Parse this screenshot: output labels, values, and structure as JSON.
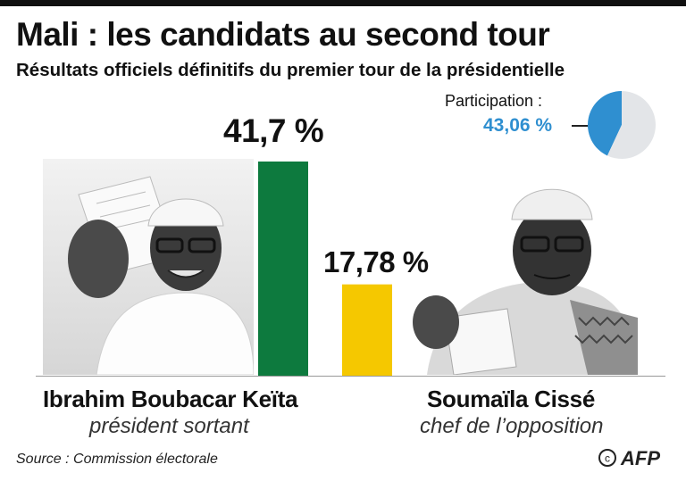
{
  "header": {
    "title": "Mali : les candidats au second tour",
    "subtitle": "Résultats officiels définitifs du premier tour de la présidentielle"
  },
  "participation": {
    "label": "Participation :",
    "value_text": "43,06 %",
    "value": 43.06,
    "accent_color": "#2f8fd0",
    "rest_color": "#e3e5e8"
  },
  "chart_data": {
    "type": "bar",
    "title": "Mali : les candidats au second tour",
    "subtitle": "Résultats officiels définitifs du premier tour de la présidentielle",
    "categories": [
      "Ibrahim Boubacar Keïta",
      "Soumaïla Cissé"
    ],
    "values": [
      41.7,
      17.78
    ],
    "value_labels": [
      "41,7 %",
      "17,78 %"
    ],
    "colors": [
      "#0d7a3e",
      "#f5c800"
    ],
    "ylim": [
      0,
      45
    ],
    "grid": false,
    "inset_pie": {
      "label": "Participation :",
      "slices": [
        {
          "value": 43.06,
          "color": "#2f8fd0"
        },
        {
          "value": 56.94,
          "color": "#e3e5e8"
        }
      ]
    }
  },
  "candidates": [
    {
      "name": "Ibrahim Boubacar Keïta",
      "role": "président sortant",
      "value_label": "41,7 %",
      "photo_icon": "ibk-photo-icon"
    },
    {
      "name": "Soumaïla Cissé",
      "role": "chef de l’opposition",
      "value_label": "17,78 %",
      "photo_icon": "cisse-photo-icon"
    }
  ],
  "footer": {
    "source": "Source : Commission électorale",
    "credit": "© AFP"
  }
}
